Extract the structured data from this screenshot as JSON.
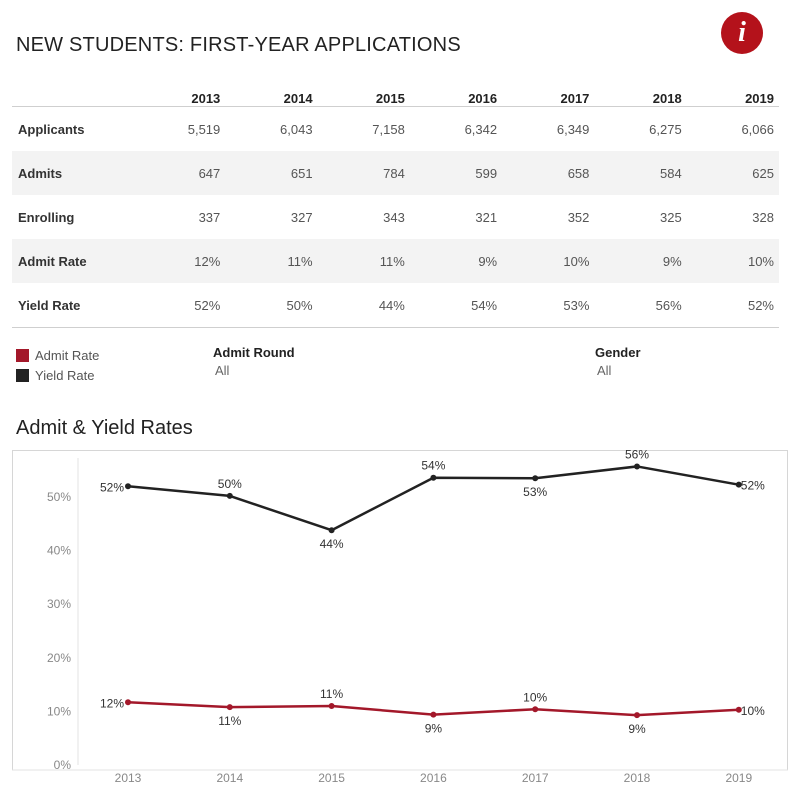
{
  "title": "NEW STUDENTS: FIRST-YEAR APPLICATIONS",
  "info_icon": "i",
  "colors": {
    "admit": "#a3182a",
    "yield": "#222222",
    "accent": "#b4121b"
  },
  "table": {
    "years": [
      "2013",
      "2014",
      "2015",
      "2016",
      "2017",
      "2018",
      "2019"
    ],
    "rows": [
      {
        "label": "Applicants",
        "values": [
          "5,519",
          "6,043",
          "7,158",
          "6,342",
          "6,349",
          "6,275",
          "6,066"
        ]
      },
      {
        "label": "Admits",
        "values": [
          "647",
          "651",
          "784",
          "599",
          "658",
          "584",
          "625"
        ]
      },
      {
        "label": "Enrolling",
        "values": [
          "337",
          "327",
          "343",
          "321",
          "352",
          "325",
          "328"
        ]
      },
      {
        "label": "Admit Rate",
        "values": [
          "12%",
          "11%",
          "11%",
          "9%",
          "10%",
          "9%",
          "10%"
        ]
      },
      {
        "label": "Yield Rate",
        "values": [
          "52%",
          "50%",
          "44%",
          "54%",
          "53%",
          "56%",
          "52%"
        ]
      }
    ]
  },
  "legend": {
    "admit_rate": "Admit Rate",
    "yield_rate": "Yield Rate"
  },
  "filters": {
    "admit_round": {
      "label": "Admit Round",
      "value": "All"
    },
    "gender": {
      "label": "Gender",
      "value": "All"
    }
  },
  "chart_title": "Admit & Yield Rates",
  "chart_data": {
    "type": "line",
    "x": [
      "2013",
      "2014",
      "2015",
      "2016",
      "2017",
      "2018",
      "2019"
    ],
    "series": [
      {
        "name": "Yield Rate",
        "values": [
          52.0,
          50.2,
          43.8,
          53.6,
          53.5,
          55.7,
          52.3
        ],
        "labels": [
          "52%",
          "50%",
          "44%",
          "54%",
          "53%",
          "56%",
          "52%"
        ],
        "label_pos": [
          "left",
          "above",
          "below",
          "above",
          "below",
          "above",
          "right"
        ]
      },
      {
        "name": "Admit Rate",
        "values": [
          11.7,
          10.8,
          11.0,
          9.4,
          10.4,
          9.3,
          10.3
        ],
        "labels": [
          "12%",
          "11%",
          "11%",
          "9%",
          "10%",
          "9%",
          "10%"
        ],
        "label_pos": [
          "left",
          "below",
          "above",
          "below",
          "above",
          "below",
          "right"
        ]
      }
    ],
    "ylim": [
      0,
      60
    ],
    "yticks": [
      0,
      10,
      20,
      30,
      40,
      50
    ],
    "ytick_labels": [
      "0%",
      "10%",
      "20%",
      "30%",
      "40%",
      "50%"
    ],
    "grid": false
  }
}
